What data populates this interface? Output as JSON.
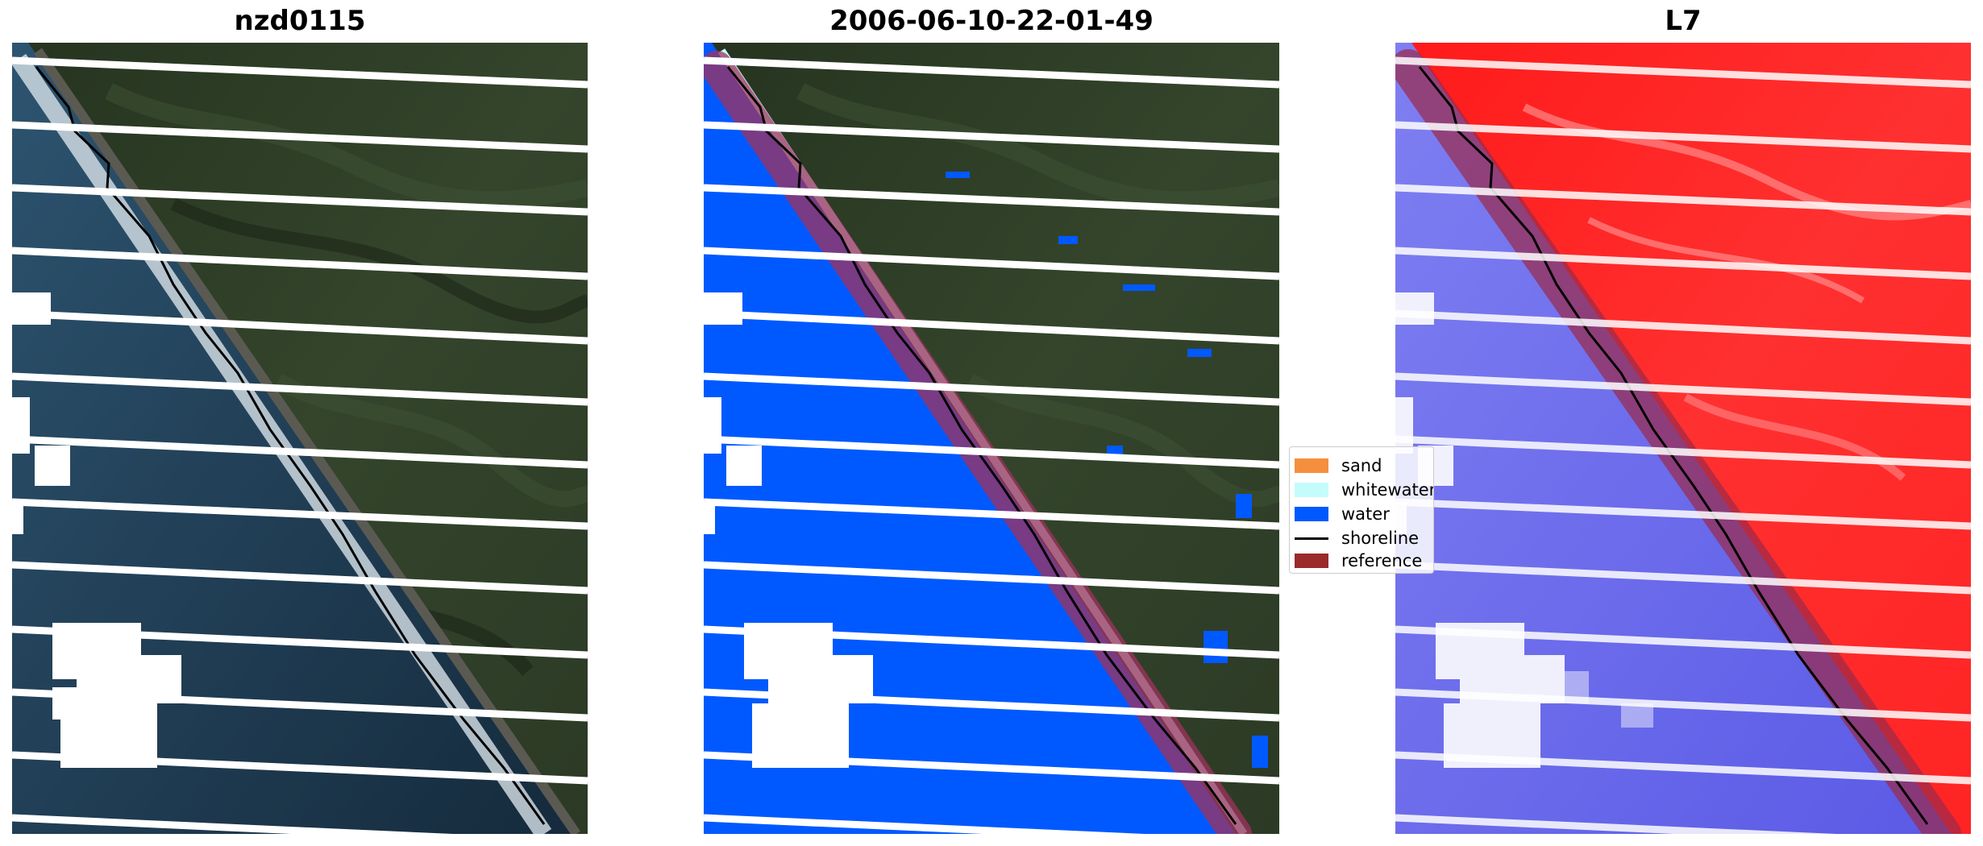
{
  "panels": [
    {
      "title": "nzd0115"
    },
    {
      "title": "2006-06-10-22-01-49"
    },
    {
      "title": "L7"
    }
  ],
  "legend": {
    "items": [
      {
        "label": "sand",
        "color": "#f58f3d",
        "kind": "patch"
      },
      {
        "label": "whitewater",
        "color": "#c4fcfc",
        "kind": "patch"
      },
      {
        "label": "water",
        "color": "#0059ff",
        "kind": "patch"
      },
      {
        "label": "shoreline",
        "color": "#000000",
        "kind": "line"
      },
      {
        "label": "reference",
        "color": "#9b2a2a",
        "kind": "patch"
      }
    ]
  },
  "colors": {
    "land": "#2a3826",
    "sea_rgb": "#1e3345",
    "water_class": "#0059ff",
    "whitewater": "#c4fcfc",
    "reference_buffer": "#a0325c",
    "land_index": "#ff2020",
    "water_index": "#6a6af0",
    "nodata": "#ffffff"
  }
}
